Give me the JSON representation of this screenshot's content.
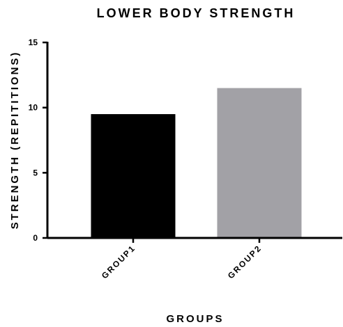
{
  "chart_data": {
    "type": "bar",
    "title": "LOWER BODY STRENGTH",
    "xlabel": "GROUPS",
    "ylabel": "STRENGTH (REPITITIONS)",
    "categories": [
      "GROUP1",
      "GROUP2"
    ],
    "values": [
      9.5,
      11.5
    ],
    "ylim": [
      0,
      15
    ],
    "yticks": [
      "0",
      "5",
      "10",
      "15"
    ],
    "bar_colors": [
      "#000000",
      "#a2a1a6"
    ],
    "grid": false,
    "legend": "none"
  }
}
